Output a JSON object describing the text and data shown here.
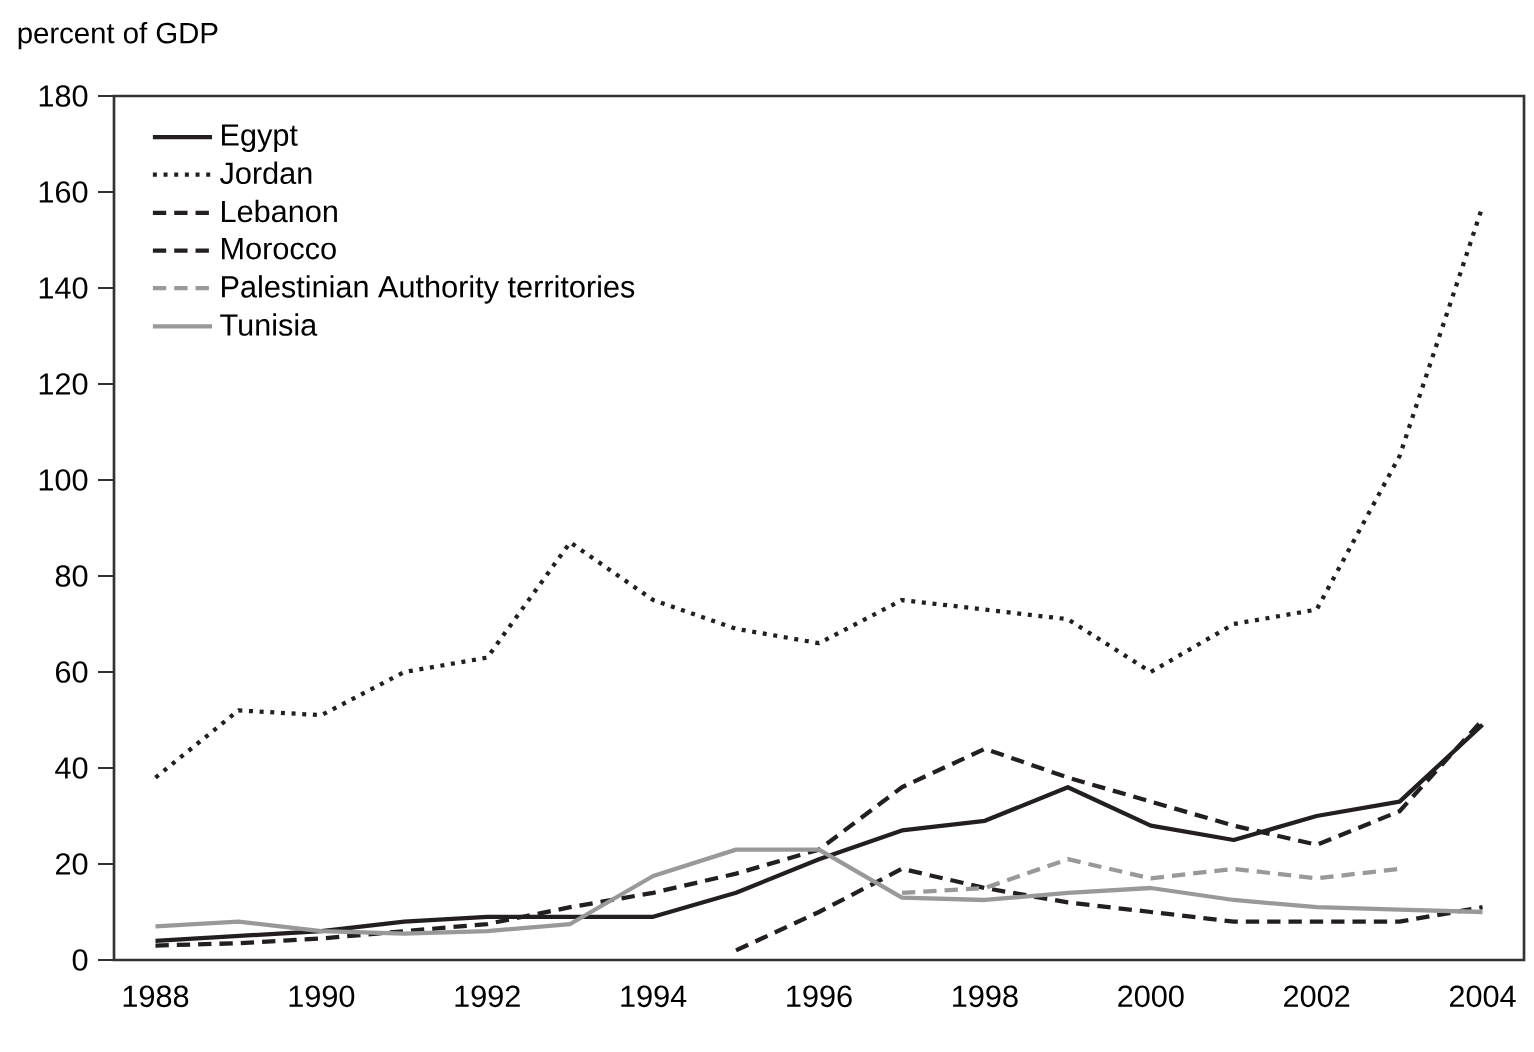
{
  "chart_data": {
    "type": "line",
    "ylabel": "percent of GDP",
    "categories": [
      "1988",
      null,
      "1990",
      null,
      "1992",
      null,
      "1994",
      null,
      "1996",
      null,
      "1998",
      null,
      "2000",
      null,
      "2002",
      null,
      "2004"
    ],
    "ylim": [
      0,
      180
    ],
    "yticks": [
      0,
      20,
      40,
      60,
      80,
      100,
      120,
      140,
      160,
      180
    ],
    "grid": false,
    "legend": "top left",
    "marker": "none",
    "series": [
      {
        "name": "Egypt",
        "color": "#231f20",
        "line_style": "solid",
        "values": [
          4,
          5,
          6,
          8,
          9,
          9,
          9,
          14,
          21,
          27,
          29,
          36,
          28,
          25,
          30,
          33,
          49
        ]
      },
      {
        "name": "Jordan",
        "color": "#231f20",
        "line_style": "dotted",
        "values": [
          38,
          52,
          51,
          60,
          63,
          87,
          75,
          69,
          66,
          75,
          73,
          71,
          60,
          70,
          73,
          105,
          157
        ]
      },
      {
        "name": "Lebanon",
        "color": "#231f20",
        "line_style": "dashed",
        "values": [
          null,
          null,
          null,
          null,
          null,
          null,
          null,
          2,
          10,
          19,
          15,
          12,
          10,
          8,
          8,
          8,
          11
        ]
      },
      {
        "name": "Morocco",
        "color": "#231f20",
        "line_style": "dashed",
        "values": [
          3,
          3.5,
          4.5,
          6,
          7.5,
          11,
          14,
          18,
          23,
          36,
          44,
          38,
          33,
          28,
          24,
          31,
          50
        ]
      },
      {
        "name": "Palestinian Authority territories",
        "color": "#999999",
        "line_style": "dashed",
        "values": [
          null,
          null,
          null,
          null,
          null,
          null,
          null,
          null,
          null,
          14,
          15,
          21,
          17,
          19,
          17,
          19,
          null
        ]
      },
      {
        "name": "Tunisia",
        "color": "#999999",
        "line_style": "solid",
        "values": [
          7,
          8,
          6,
          5.5,
          6,
          7.5,
          17.5,
          23,
          23,
          13,
          12.5,
          14,
          15,
          12.5,
          11,
          10.5,
          10
        ]
      }
    ]
  }
}
